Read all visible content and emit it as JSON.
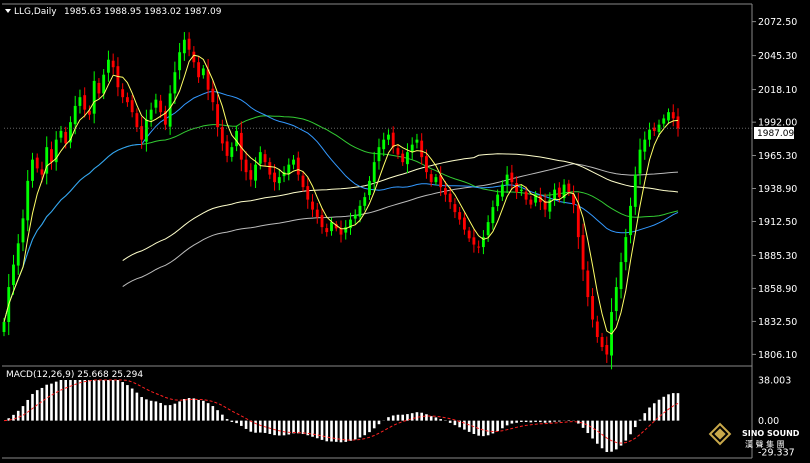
{
  "header": {
    "symbol": "LLG,Daily",
    "ohlc": "1985.63 1988.95 1983.02 1987.09"
  },
  "watermark": {
    "text": "SINO SOUND",
    "cn": "漢 聲 集 團"
  },
  "colors": {
    "background": "#000000",
    "bull": "#00ff00",
    "bear": "#ff0000",
    "ma_fast": "#ffff66",
    "ma_mid1": "#3399ff",
    "ma_mid2": "#33cc33",
    "ma_slow1": "#ffffcc",
    "ma_slow2": "#bbbbbb",
    "macd_hist": "#ffffff",
    "macd_signal": "#ff2020"
  },
  "chart_data": [
    {
      "type": "candlestick",
      "title": "LLG,Daily",
      "ylim": [
        1800,
        2085
      ],
      "yticks": [
        "2072.50",
        "2045.30",
        "2018.10",
        "1992.00",
        "1965.30",
        "1938.90",
        "1912.50",
        "1885.30",
        "1858.90",
        "1832.50",
        "1806.10"
      ],
      "current_price": "1987.09",
      "closes": [
        1832,
        1860,
        1878,
        1895,
        1915,
        1945,
        1962,
        1955,
        1950,
        1972,
        1960,
        1978,
        1985,
        1975,
        1992,
        2005,
        2012,
        2002,
        1998,
        2025,
        2015,
        2030,
        2042,
        2036,
        2020,
        2012,
        2008,
        2000,
        1988,
        1978,
        1994,
        2002,
        2010,
        2000,
        1990,
        2015,
        2032,
        2048,
        2058,
        2050,
        2040,
        2028,
        2035,
        2018,
        2008,
        1988,
        1975,
        1965,
        1972,
        1985,
        1962,
        1952,
        1946,
        1958,
        1968,
        1960,
        1950,
        1944,
        1948,
        1952,
        1958,
        1962,
        1950,
        1940,
        1930,
        1922,
        1916,
        1908,
        1904,
        1912,
        1907,
        1902,
        1908,
        1914,
        1918,
        1925,
        1932,
        1945,
        1960,
        1972,
        1978,
        1982,
        1972,
        1966,
        1960,
        1968,
        1974,
        1978,
        1964,
        1952,
        1944,
        1948,
        1940,
        1934,
        1928,
        1920,
        1914,
        1906,
        1899,
        1894,
        1892,
        1900,
        1912,
        1924,
        1934,
        1942,
        1950,
        1944,
        1936,
        1938,
        1930,
        1926,
        1934,
        1928,
        1922,
        1930,
        1938,
        1932,
        1942,
        1936,
        1926,
        1900,
        1874,
        1852,
        1834,
        1820,
        1812,
        1806,
        1840,
        1860,
        1880,
        1900,
        1925,
        1950,
        1970,
        1978,
        1986,
        1985,
        1990,
        1995,
        2000,
        1995,
        1987
      ]
    },
    {
      "type": "macd",
      "label": "MACD(12,26,9) 25.668 25.294",
      "ylim": [
        -29.337,
        38.003
      ],
      "yticks": [
        "38.003",
        "0.00",
        "-29.337"
      ]
    }
  ]
}
